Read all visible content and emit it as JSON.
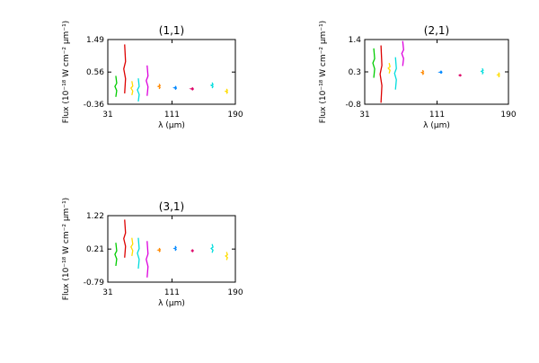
{
  "chart_data": [
    {
      "type": "line",
      "title": "(1,1)",
      "xlabel": "λ (μm)",
      "ylabel": "Flux (10⁻¹⁸ W cm⁻² μm⁻¹)",
      "xlim": [
        31,
        190
      ],
      "ylim": [
        -0.36,
        1.49
      ],
      "xticks": [
        "31",
        "111",
        "190"
      ],
      "yticks": [
        "-0.36",
        "0.56",
        "1.49"
      ],
      "series": [
        {
          "color": "#00cc00",
          "x": 41,
          "ymin": -0.15,
          "ymax": 0.45
        },
        {
          "color": "#dd0000",
          "x": 52,
          "ymin": -0.05,
          "ymax": 1.35
        },
        {
          "color": "#ffdd00",
          "x": 61,
          "ymin": -0.1,
          "ymax": 0.3
        },
        {
          "color": "#00dddd",
          "x": 69,
          "ymin": -0.28,
          "ymax": 0.38
        },
        {
          "color": "#dd00dd",
          "x": 80,
          "ymin": -0.12,
          "ymax": 0.75
        },
        {
          "color": "#ff8800",
          "x": 95,
          "ymin": 0.08,
          "ymax": 0.22
        },
        {
          "color": "#0088ff",
          "x": 115,
          "ymin": 0.06,
          "ymax": 0.16
        },
        {
          "color": "#dd0066",
          "x": 136,
          "ymin": 0.04,
          "ymax": 0.12
        },
        {
          "color": "#00dddd",
          "x": 161,
          "ymin": 0.1,
          "ymax": 0.26
        },
        {
          "color": "#ffdd00",
          "x": 179,
          "ymin": -0.06,
          "ymax": 0.08
        }
      ]
    },
    {
      "type": "line",
      "title": "(2,1)",
      "xlabel": "λ (μm)",
      "ylabel": "Flux (10⁻¹⁸ W cm⁻² μm⁻¹)",
      "xlim": [
        31,
        190
      ],
      "ylim": [
        -0.8,
        1.4
      ],
      "xticks": [
        "31",
        "111",
        "190"
      ],
      "yticks": [
        "-0.8",
        "0.3",
        "1.4"
      ],
      "series": [
        {
          "color": "#00cc00",
          "x": 41,
          "ymin": 0.1,
          "ymax": 1.1
        },
        {
          "color": "#dd0000",
          "x": 49,
          "ymin": -0.75,
          "ymax": 1.2
        },
        {
          "color": "#ffdd00",
          "x": 58,
          "ymin": 0.25,
          "ymax": 0.6
        },
        {
          "color": "#00dddd",
          "x": 65,
          "ymin": -0.3,
          "ymax": 0.8
        },
        {
          "color": "#dd00dd",
          "x": 73,
          "ymin": 0.5,
          "ymax": 1.35
        },
        {
          "color": "#ff8800",
          "x": 95,
          "ymin": 0.2,
          "ymax": 0.36
        },
        {
          "color": "#0088ff",
          "x": 115,
          "ymin": 0.24,
          "ymax": 0.34
        },
        {
          "color": "#dd0066",
          "x": 136,
          "ymin": 0.15,
          "ymax": 0.22
        },
        {
          "color": "#00dddd",
          "x": 161,
          "ymin": 0.22,
          "ymax": 0.42
        },
        {
          "color": "#ffdd00",
          "x": 179,
          "ymin": 0.12,
          "ymax": 0.28
        }
      ]
    },
    {
      "type": "line",
      "title": "(3,1)",
      "xlabel": "λ (μm)",
      "ylabel": "Flux (10⁻¹⁸ W cm⁻² μm⁻¹)",
      "xlim": [
        31,
        190
      ],
      "ylim": [
        -0.79,
        1.22
      ],
      "xticks": [
        "31",
        "111",
        "190"
      ],
      "yticks": [
        "-0.79",
        "0.21",
        "1.22"
      ],
      "series": [
        {
          "color": "#00cc00",
          "x": 41,
          "ymin": -0.3,
          "ymax": 0.4
        },
        {
          "color": "#dd0000",
          "x": 52,
          "ymin": -0.05,
          "ymax": 1.1
        },
        {
          "color": "#ffdd00",
          "x": 61,
          "ymin": 0.0,
          "ymax": 0.55
        },
        {
          "color": "#00dddd",
          "x": 69,
          "ymin": -0.38,
          "ymax": 0.55
        },
        {
          "color": "#dd00dd",
          "x": 80,
          "ymin": -0.65,
          "ymax": 0.45
        },
        {
          "color": "#ff8800",
          "x": 95,
          "ymin": 0.12,
          "ymax": 0.24
        },
        {
          "color": "#0088ff",
          "x": 115,
          "ymin": 0.16,
          "ymax": 0.3
        },
        {
          "color": "#dd0066",
          "x": 136,
          "ymin": 0.12,
          "ymax": 0.2
        },
        {
          "color": "#00dddd",
          "x": 161,
          "ymin": 0.1,
          "ymax": 0.36
        },
        {
          "color": "#ffdd00",
          "x": 179,
          "ymin": -0.12,
          "ymax": 0.12
        }
      ]
    }
  ]
}
